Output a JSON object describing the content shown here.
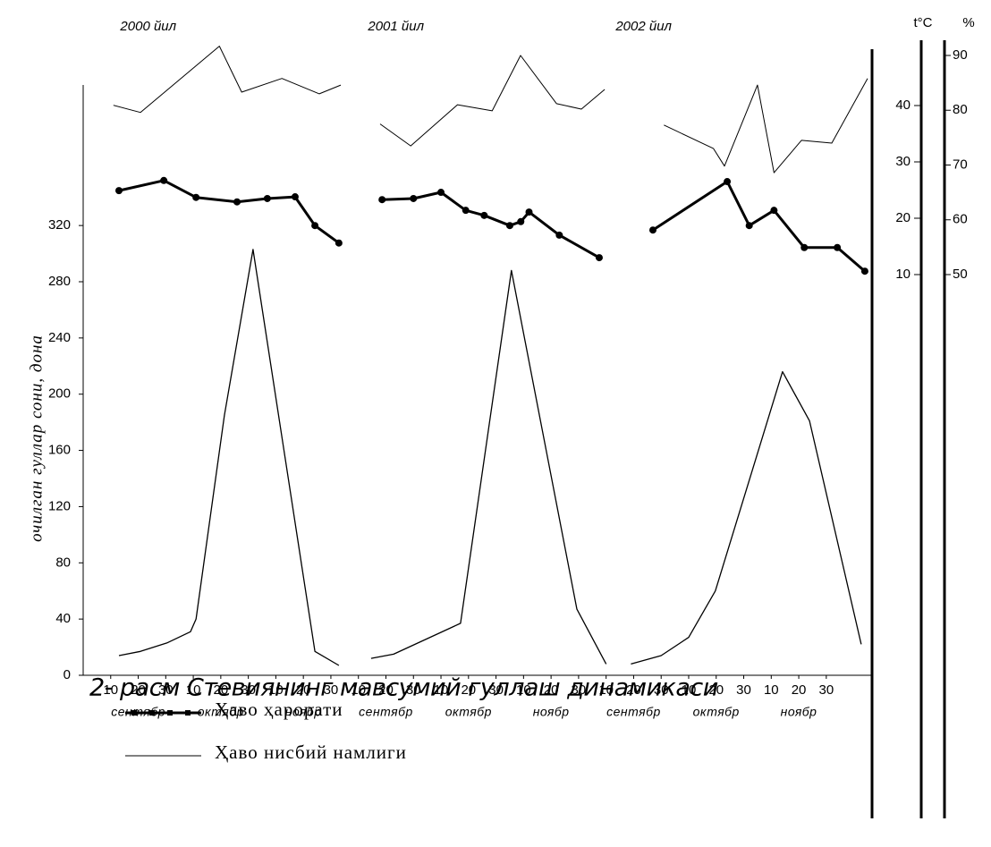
{
  "chart_data": {
    "type": "line",
    "title": "2- расм Стевиянинг мавсумий гуллаш динамикаси",
    "ylabel": "очилган гуллар сони, дона",
    "y2label": "t°C",
    "y3label": "%",
    "panel_labels": [
      "2000 йил",
      "2001 йил",
      "2002 йил"
    ],
    "month_labels": [
      "сентябр",
      "октябр",
      "ноябр",
      "сентябр",
      "октябр",
      "ноябр",
      "сентябр",
      "октябр",
      "ноябр"
    ],
    "xlim": [
      -1,
      27.5
    ],
    "xticks": [
      {
        "value": 0,
        "label": "10"
      },
      {
        "value": 1,
        "label": "20"
      },
      {
        "value": 2,
        "label": "30"
      },
      {
        "value": 3,
        "label": "10"
      },
      {
        "value": 4,
        "label": "20"
      },
      {
        "value": 5,
        "label": "30"
      },
      {
        "value": 6,
        "label": "10"
      },
      {
        "value": 7,
        "label": "20"
      },
      {
        "value": 8,
        "label": "30"
      },
      {
        "value": 9,
        "label": "10"
      },
      {
        "value": 10,
        "label": "20"
      },
      {
        "value": 11,
        "label": "30"
      },
      {
        "value": 12,
        "label": "10"
      },
      {
        "value": 13,
        "label": "20"
      },
      {
        "value": 14,
        "label": "30"
      },
      {
        "value": 15,
        "label": "10"
      },
      {
        "value": 16,
        "label": "20"
      },
      {
        "value": 17,
        "label": "30"
      },
      {
        "value": 18,
        "label": "10"
      },
      {
        "value": 19,
        "label": "20"
      },
      {
        "value": 20,
        "label": "30"
      },
      {
        "value": 21,
        "label": "10"
      },
      {
        "value": 22,
        "label": "20"
      },
      {
        "value": 23,
        "label": "30"
      },
      {
        "value": 24,
        "label": "10"
      },
      {
        "value": 25,
        "label": "20"
      },
      {
        "value": 26,
        "label": "30"
      }
    ],
    "ylim": [
      0,
      420
    ],
    "yticks": [
      0,
      40,
      80,
      120,
      160,
      200,
      240,
      280,
      320
    ],
    "y2lim": [
      0,
      50
    ],
    "y2ticks": [
      10,
      20,
      30,
      40
    ],
    "y3lim": [
      40,
      90
    ],
    "y3ticks": [
      50,
      60,
      70,
      80,
      90
    ],
    "series": [
      {
        "color": "#000000",
        "width": 1.3,
        "markers": false,
        "x": [
          0.3,
          1.08,
          2.04,
          2.9,
          3.1,
          4.13,
          5.17,
          7.42,
          8.29,
          null,
          9.46,
          10.28,
          12.71,
          14.56,
          16.94,
          18.0,
          null,
          18.9,
          20.0,
          21.0,
          21.97,
          24.41,
          25.39,
          27.27
        ],
        "values": [
          14,
          17,
          23,
          31,
          40,
          185,
          303,
          17,
          7,
          null,
          12,
          15,
          37,
          288,
          47,
          8,
          null,
          8,
          14,
          27,
          60,
          216,
          181,
          22
        ]
      },
      {
        "name": "Ҳаво ҳарорати",
        "color": "#000000",
        "width": 3,
        "markers": true,
        "axis": "y2",
        "x": [
          0.3,
          1.93,
          3.1,
          4.59,
          5.69,
          6.7,
          7.42,
          8.29,
          null,
          9.86,
          11.0,
          12.0,
          12.9,
          13.57,
          14.5,
          14.9,
          15.2,
          16.3,
          17.75,
          null,
          19.7,
          22.4,
          23.2,
          24.1,
          25.2,
          26.4,
          27.4
        ],
        "values": [
          24.9,
          26.7,
          23.7,
          22.9,
          23.5,
          23.8,
          18.7,
          15.6,
          null,
          23.3,
          23.5,
          24.6,
          21.4,
          20.5,
          18.7,
          19.4,
          21.1,
          17.0,
          13.0,
          null,
          17.9,
          26.5,
          18.7,
          21.4,
          14.8,
          14.8,
          10.6
        ]
      },
      {
        "name": "Ҳаво нисбий намлиги",
        "color": "#000000",
        "width": 1,
        "markers": false,
        "axis": "y3",
        "x": [
          0.1,
          1.08,
          3.95,
          4.76,
          6.22,
          7.58,
          8.36,
          null,
          9.79,
          10.9,
          12.6,
          13.86,
          14.89,
          16.2,
          17.1,
          17.95,
          null,
          20.1,
          21.9,
          22.3,
          23.5,
          24.1,
          25.1,
          26.2,
          27.5
        ],
        "values": [
          80.9,
          79.6,
          91.7,
          83.3,
          85.8,
          83.0,
          84.6,
          null,
          77.5,
          73.5,
          81.0,
          79.9,
          90.0,
          81.2,
          80.2,
          83.8,
          null,
          77.3,
          73.0,
          69.8,
          84.6,
          68.6,
          74.5,
          74.0,
          85.8
        ]
      }
    ]
  }
}
